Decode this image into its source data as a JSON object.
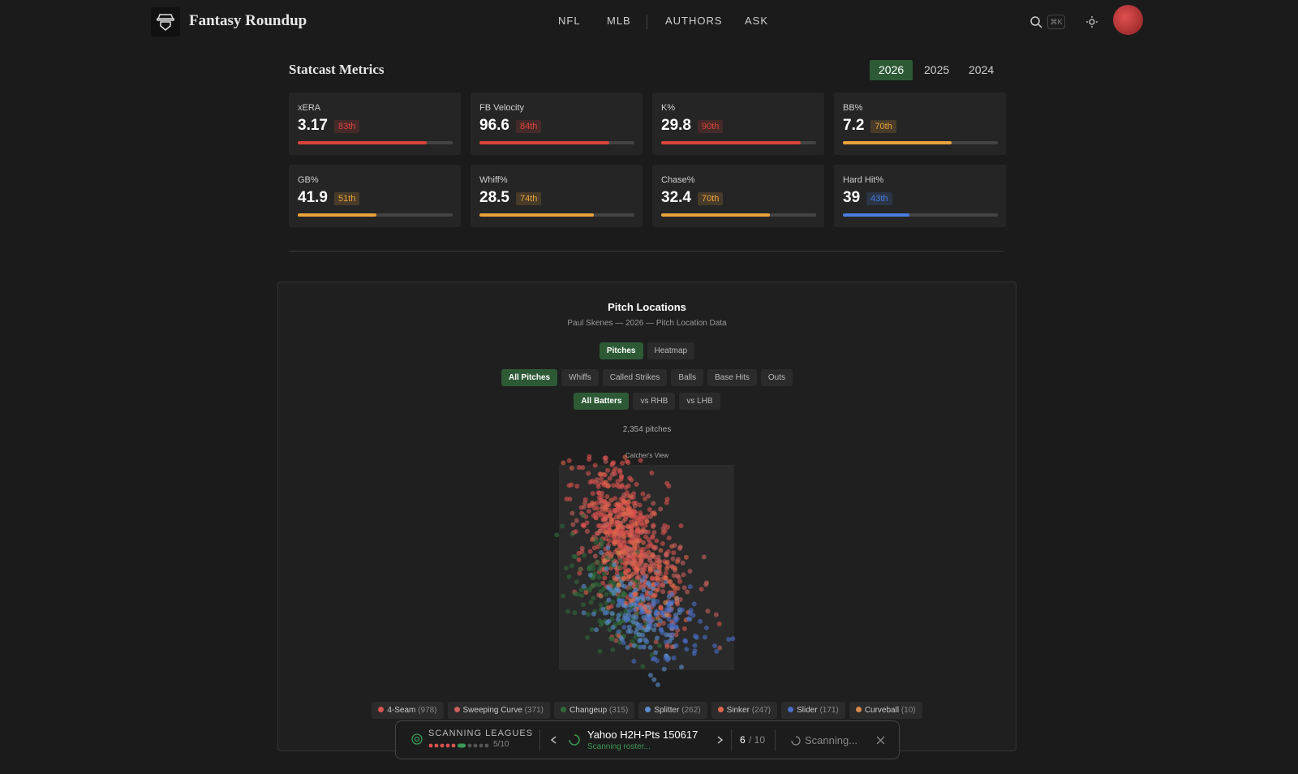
{
  "header": {
    "brand": "Fantasy Roundup",
    "nav": [
      "NFL",
      "MLB",
      "AUTHORS",
      "ASK"
    ],
    "shortcut": "⌘K"
  },
  "statcast": {
    "title": "Statcast Metrics",
    "years": [
      {
        "label": "2026",
        "active": true
      },
      {
        "label": "2025",
        "active": false
      },
      {
        "label": "2024",
        "active": false
      }
    ],
    "metrics": [
      {
        "label": "xERA",
        "value": 3.17,
        "percentile": 83,
        "percentile_label": "83th",
        "color": "#d9453c"
      },
      {
        "label": "FB Velocity",
        "value": 96.6,
        "percentile": 84,
        "percentile_label": "84th",
        "color": "#d9453c"
      },
      {
        "label": "K%",
        "value": 29.8,
        "percentile": 90,
        "percentile_label": "90th",
        "color": "#d9453c"
      },
      {
        "label": "BB%",
        "value": 7.2,
        "percentile": 70,
        "percentile_label": "70th",
        "color": "#e8a33c"
      },
      {
        "label": "GB%",
        "value": 41.9,
        "percentile": 51,
        "percentile_label": "51th",
        "color": "#e8a33c"
      },
      {
        "label": "Whiff%",
        "value": 28.5,
        "percentile": 74,
        "percentile_label": "74th",
        "color": "#e8a33c"
      },
      {
        "label": "Chase%",
        "value": 32.4,
        "percentile": 70,
        "percentile_label": "70th",
        "color": "#e8a33c"
      },
      {
        "label": "Hard Hit%",
        "value": 39,
        "percentile": 43,
        "percentile_label": "43th",
        "color": "#4a7de0"
      }
    ]
  },
  "pitch_locations": {
    "title": "Pitch Locations",
    "subtitle": "Paul Skenes — 2026 — Pitch Location Data",
    "view_toggle": [
      {
        "label": "Pitches",
        "active": true
      },
      {
        "label": "Heatmap",
        "active": false
      }
    ],
    "result_filters": [
      {
        "label": "All Pitches",
        "active": true
      },
      {
        "label": "Whiffs",
        "active": false
      },
      {
        "label": "Called Strikes",
        "active": false
      },
      {
        "label": "Balls",
        "active": false
      },
      {
        "label": "Base Hits",
        "active": false
      },
      {
        "label": "Outs",
        "active": false
      }
    ],
    "batter_filters": [
      {
        "label": "All Batters",
        "active": true
      },
      {
        "label": "vs RHB",
        "active": false
      },
      {
        "label": "vs LHB",
        "active": false
      }
    ],
    "total": "2,354 pitches",
    "view_label": "Catcher's View",
    "legend": [
      {
        "name": "4-Seam",
        "count_label": "(978)",
        "color": "#d9534f"
      },
      {
        "name": "Sweeping Curve",
        "count_label": "(371)",
        "color": "#c9605c"
      },
      {
        "name": "Changeup",
        "count_label": "(315)",
        "color": "#2f6b3a"
      },
      {
        "name": "Splitter",
        "count_label": "(262)",
        "color": "#5b8fd0"
      },
      {
        "name": "Sinker",
        "count_label": "(247)",
        "color": "#e0674a"
      },
      {
        "name": "Slider",
        "count_label": "(171)",
        "color": "#4a6fc9"
      },
      {
        "name": "Curveball",
        "count_label": "(10)",
        "color": "#d98a4a"
      }
    ]
  },
  "scanner": {
    "title": "SCANNING LEAGUES",
    "progress": "5/10",
    "league": "Yahoo H2H-Pts 150617",
    "status": "Scanning roster...",
    "page_current": "6",
    "page_total": "/ 10",
    "state": "Scanning..."
  }
}
